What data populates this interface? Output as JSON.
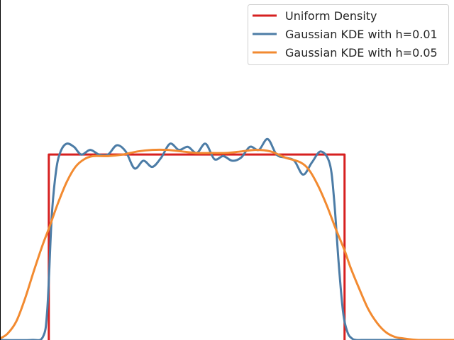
{
  "chart_data": {
    "type": "line",
    "title": "",
    "xlabel": "",
    "ylabel": "",
    "xlim": [
      -0.165,
      1.37
    ],
    "ylim": [
      0,
      2.2
    ],
    "grid": false,
    "legend": "top-right",
    "series": [
      {
        "name": "Uniform Density",
        "color": "#d62020",
        "x": [
          0,
          0,
          1,
          1
        ],
        "y": [
          0,
          1.2,
          1.2,
          0
        ]
      },
      {
        "name": "Gaussian KDE with h=0.01",
        "color": "#4c7ca6",
        "x": [
          -0.165,
          -0.06,
          -0.02,
          -0.005,
          0.01,
          0.025,
          0.04,
          0.06,
          0.085,
          0.11,
          0.14,
          0.17,
          0.2,
          0.23,
          0.26,
          0.29,
          0.32,
          0.35,
          0.38,
          0.41,
          0.44,
          0.47,
          0.5,
          0.53,
          0.56,
          0.59,
          0.62,
          0.65,
          0.68,
          0.71,
          0.74,
          0.77,
          0.8,
          0.83,
          0.86,
          0.89,
          0.92,
          0.95,
          0.965,
          0.98,
          0.995,
          1.01,
          1.025,
          1.04,
          1.06,
          1.1,
          1.37
        ],
        "y": [
          0,
          0,
          0.02,
          0.2,
          0.8,
          1.1,
          1.22,
          1.27,
          1.25,
          1.2,
          1.23,
          1.2,
          1.2,
          1.26,
          1.22,
          1.11,
          1.16,
          1.12,
          1.18,
          1.27,
          1.23,
          1.25,
          1.21,
          1.27,
          1.17,
          1.19,
          1.16,
          1.18,
          1.25,
          1.23,
          1.3,
          1.2,
          1.18,
          1.16,
          1.07,
          1.15,
          1.22,
          1.14,
          0.9,
          0.5,
          0.18,
          0.05,
          0.01,
          0,
          0,
          0,
          0
        ]
      },
      {
        "name": "Gaussian KDE with h=0.05",
        "color": "#f28a30",
        "x": [
          -0.165,
          -0.14,
          -0.11,
          -0.08,
          -0.05,
          -0.02,
          0.0,
          0.03,
          0.06,
          0.09,
          0.12,
          0.15,
          0.2,
          0.25,
          0.3,
          0.35,
          0.4,
          0.45,
          0.5,
          0.55,
          0.6,
          0.65,
          0.7,
          0.75,
          0.8,
          0.85,
          0.88,
          0.91,
          0.94,
          0.97,
          1.0,
          1.02,
          1.05,
          1.08,
          1.11,
          1.14,
          1.17,
          1.2,
          1.25,
          1.3,
          1.37
        ],
        "y": [
          0.01,
          0.04,
          0.12,
          0.27,
          0.45,
          0.62,
          0.72,
          0.88,
          1.02,
          1.12,
          1.17,
          1.19,
          1.19,
          1.2,
          1.22,
          1.23,
          1.23,
          1.22,
          1.21,
          1.21,
          1.21,
          1.22,
          1.23,
          1.22,
          1.18,
          1.15,
          1.1,
          1.0,
          0.87,
          0.72,
          0.58,
          0.47,
          0.33,
          0.2,
          0.11,
          0.05,
          0.02,
          0.01,
          0,
          0,
          0
        ]
      }
    ]
  }
}
